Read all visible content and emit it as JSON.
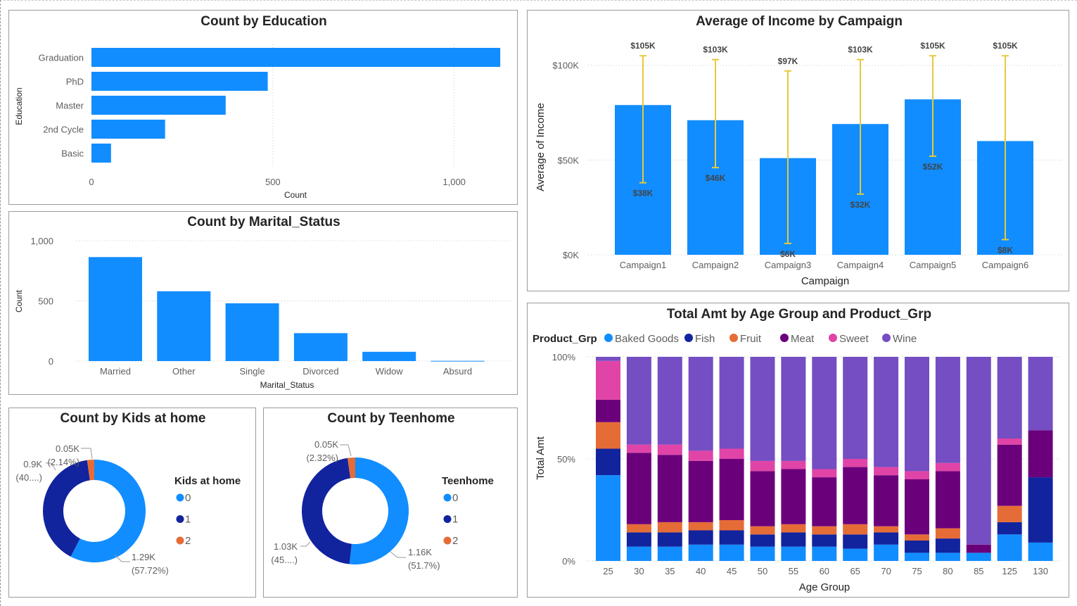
{
  "chart_data": [
    {
      "id": "education",
      "type": "bar",
      "orientation": "horizontal",
      "title": "Count by Education",
      "xlabel": "Count",
      "ylabel": "Education",
      "categories": [
        "Graduation",
        "PhD",
        "Master",
        "2nd Cycle",
        "Basic"
      ],
      "values": [
        1127,
        486,
        370,
        203,
        54
      ],
      "xlim": [
        0,
        1150
      ],
      "xticks": [
        0,
        500,
        1000
      ],
      "xtick_labels": [
        "0",
        "500",
        "1,000"
      ],
      "grid": true,
      "color": "#118DFF"
    },
    {
      "id": "marital",
      "type": "bar",
      "title": "Count by Marital_Status",
      "xlabel": "Marital_Status",
      "ylabel": "Count",
      "categories": [
        "Married",
        "Other",
        "Single",
        "Divorced",
        "Widow",
        "Absurd"
      ],
      "values": [
        864,
        580,
        480,
        232,
        77,
        2
      ],
      "ylim": [
        0,
        1000
      ],
      "yticks": [
        0,
        500,
        1000
      ],
      "ytick_labels": [
        "0",
        "500",
        "1,000"
      ],
      "grid": true,
      "color": "#118DFF"
    },
    {
      "id": "income",
      "type": "bar",
      "title": "Average of Income by Campaign",
      "xlabel": "Campaign",
      "ylabel": "Average of Income",
      "categories": [
        "Campaign1",
        "Campaign2",
        "Campaign3",
        "Campaign4",
        "Campaign5",
        "Campaign6"
      ],
      "values": [
        79000,
        71000,
        51000,
        69000,
        82000,
        60000
      ],
      "error_high": [
        105000,
        103000,
        97000,
        103000,
        105000,
        105000
      ],
      "error_low": [
        38000,
        46000,
        6000,
        32000,
        52000,
        8000
      ],
      "error_high_labels": [
        "$105K",
        "$103K",
        "$97K",
        "$103K",
        "$105K",
        "$105K"
      ],
      "error_low_labels": [
        "$38K",
        "$46K",
        "$6K",
        "$32K",
        "$52K",
        "$8K"
      ],
      "ylim": [
        0,
        114000
      ],
      "yticks": [
        0,
        50000,
        100000
      ],
      "ytick_labels": [
        "$0K",
        "$50K",
        "$100K"
      ],
      "grid": true,
      "color": "#118DFF",
      "error_color": "#E8C93A"
    },
    {
      "id": "kids",
      "type": "pie",
      "donut": true,
      "title": "Count by Kids at home",
      "legend_title": "Kids at home",
      "legend_position": "right",
      "categories": [
        "0",
        "1",
        "2"
      ],
      "values": [
        1290,
        900,
        50
      ],
      "colors": [
        "#118DFF",
        "#12239E",
        "#E66C37"
      ],
      "label_values": [
        "1.29K",
        "0.9K",
        "0.05K"
      ],
      "label_pcts": [
        "(57.72%)",
        "(40....)",
        "(2.14%)"
      ]
    },
    {
      "id": "teen",
      "type": "pie",
      "donut": true,
      "title": "Count by Teenhome",
      "legend_title": "Teenhome",
      "legend_position": "right",
      "categories": [
        "0",
        "1",
        "2"
      ],
      "values": [
        1160,
        1030,
        52
      ],
      "colors": [
        "#118DFF",
        "#12239E",
        "#E66C37"
      ],
      "label_values": [
        "1.16K",
        "1.03K",
        "0.05K"
      ],
      "label_pcts": [
        "(51.7%)",
        "(45....)",
        "(2.32%)"
      ]
    },
    {
      "id": "agegroup",
      "type": "bar",
      "stacked": "percent",
      "title": "Total Amt by Age Group and Product_Grp",
      "xlabel": "Age Group",
      "ylabel": "Total Amt",
      "legend_title": "Product_Grp",
      "legend_position": "top-left",
      "categories": [
        "25",
        "30",
        "35",
        "40",
        "45",
        "50",
        "55",
        "60",
        "65",
        "70",
        "75",
        "80",
        "85",
        "125",
        "130"
      ],
      "ylim": [
        0,
        100
      ],
      "yticks": [
        0,
        50,
        100
      ],
      "ytick_labels": [
        "0%",
        "50%",
        "100%"
      ],
      "grid": true,
      "series": [
        {
          "name": "Baked Goods",
          "color": "#118DFF",
          "values": [
            42,
            7,
            7,
            8,
            8,
            7,
            7,
            7,
            6,
            8,
            4,
            4,
            4,
            13,
            9
          ]
        },
        {
          "name": "Fish",
          "color": "#12239E",
          "values": [
            13,
            7,
            7,
            7,
            7,
            6,
            7,
            6,
            7,
            6,
            6,
            7,
            0,
            6,
            32
          ]
        },
        {
          "name": "Fruit",
          "color": "#E66C37",
          "values": [
            13,
            4,
            5,
            4,
            5,
            4,
            4,
            4,
            5,
            3,
            3,
            5,
            0,
            8,
            0
          ]
        },
        {
          "name": "Meat",
          "color": "#6B007B",
          "values": [
            11,
            35,
            33,
            30,
            30,
            27,
            27,
            24,
            28,
            25,
            27,
            28,
            4,
            30,
            23
          ]
        },
        {
          "name": "Sweet",
          "color": "#E044A7",
          "values": [
            19,
            4,
            5,
            5,
            5,
            5,
            4,
            4,
            4,
            4,
            4,
            4,
            0,
            3,
            0
          ]
        },
        {
          "name": "Wine",
          "color": "#744EC2",
          "values": [
            2,
            43,
            43,
            46,
            45,
            51,
            51,
            55,
            50,
            54,
            56,
            52,
            92,
            40,
            36
          ]
        }
      ]
    }
  ]
}
